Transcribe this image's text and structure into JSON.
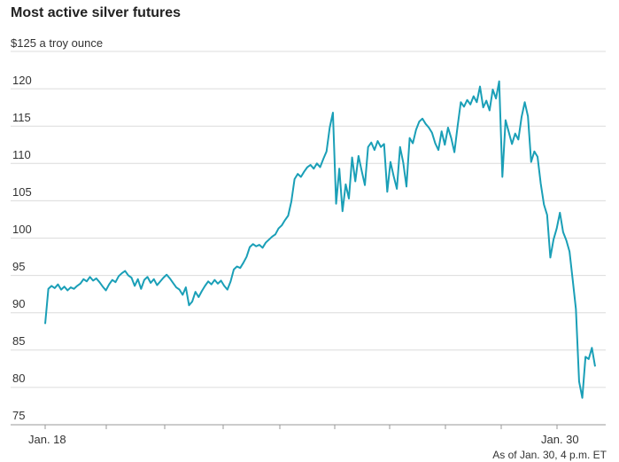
{
  "title": "Most active silver futures",
  "note": "As of Jan. 30, 4 p.m. ET",
  "colors": {
    "line": "#1a9fb7",
    "grid": "#dcdcdc",
    "axis": "#999999"
  },
  "chart_data": {
    "type": "line",
    "title": "Most active silver futures",
    "ylabel_top": "$125 a troy ounce",
    "ylim": [
      75,
      125
    ],
    "yticks": [
      75,
      80,
      85,
      90,
      95,
      100,
      105,
      110,
      115,
      120
    ],
    "ytick_labels": [
      "75",
      "80",
      "85",
      "90",
      "95",
      "100",
      "105",
      "110",
      "115",
      "120"
    ],
    "xticks": [
      "Jan. 18",
      "Jan. 30"
    ],
    "grid": true,
    "series": [
      {
        "values": [
          88.5,
          93.2,
          93.6,
          93.3,
          93.8,
          93.1,
          93.5,
          93.0,
          93.4,
          93.2,
          93.6,
          93.9,
          94.5,
          94.2,
          94.8,
          94.3,
          94.6,
          94.1,
          93.5,
          93.0,
          93.8,
          94.4,
          94.1,
          94.9,
          95.3,
          95.6,
          95.0,
          94.7,
          93.6,
          94.5,
          93.2,
          94.4,
          94.8,
          94.0,
          94.5,
          93.7,
          94.2,
          94.7,
          95.1,
          94.6,
          94.0,
          93.4,
          93.1,
          92.4,
          93.4,
          91.0,
          91.5,
          92.8,
          92.1,
          92.9,
          93.6,
          94.2,
          93.8,
          94.4,
          93.9,
          94.3,
          93.6,
          93.1,
          94.2,
          95.8,
          96.2,
          96.0,
          96.7,
          97.5,
          98.8,
          99.2,
          98.9,
          99.1,
          98.7,
          99.4,
          99.8,
          100.2,
          100.5,
          101.3,
          101.7,
          102.4,
          103.0,
          104.9,
          107.9,
          108.6,
          108.2,
          108.9,
          109.5,
          109.8,
          109.3,
          110.0,
          109.5,
          110.6,
          111.6,
          114.8,
          116.8,
          104.6,
          109.3,
          103.6,
          107.2,
          105.3,
          110.8,
          107.6,
          111.0,
          109.0,
          107.1,
          112.2,
          112.8,
          111.8,
          113.0,
          112.2,
          112.6,
          106.2,
          110.2,
          108.3,
          106.6,
          112.2,
          110.1,
          106.9,
          113.4,
          112.7,
          114.5,
          115.6,
          116.0,
          115.3,
          114.8,
          114.1,
          112.7,
          111.8,
          114.3,
          112.5,
          114.8,
          113.4,
          111.5,
          115.0,
          118.2,
          117.6,
          118.5,
          117.9,
          119.0,
          118.2,
          120.3,
          117.5,
          118.4,
          117.1,
          119.9,
          118.7,
          121.0,
          108.2,
          115.8,
          114.2,
          112.6,
          114.0,
          113.2,
          116.2,
          118.2,
          116.3,
          110.2,
          111.6,
          110.9,
          107.3,
          104.5,
          103.1,
          97.4,
          99.8,
          101.3,
          103.4,
          100.8,
          99.7,
          98.2,
          94.4,
          90.5,
          80.8,
          78.6,
          84.1,
          83.8,
          85.3,
          82.8
        ]
      }
    ]
  }
}
